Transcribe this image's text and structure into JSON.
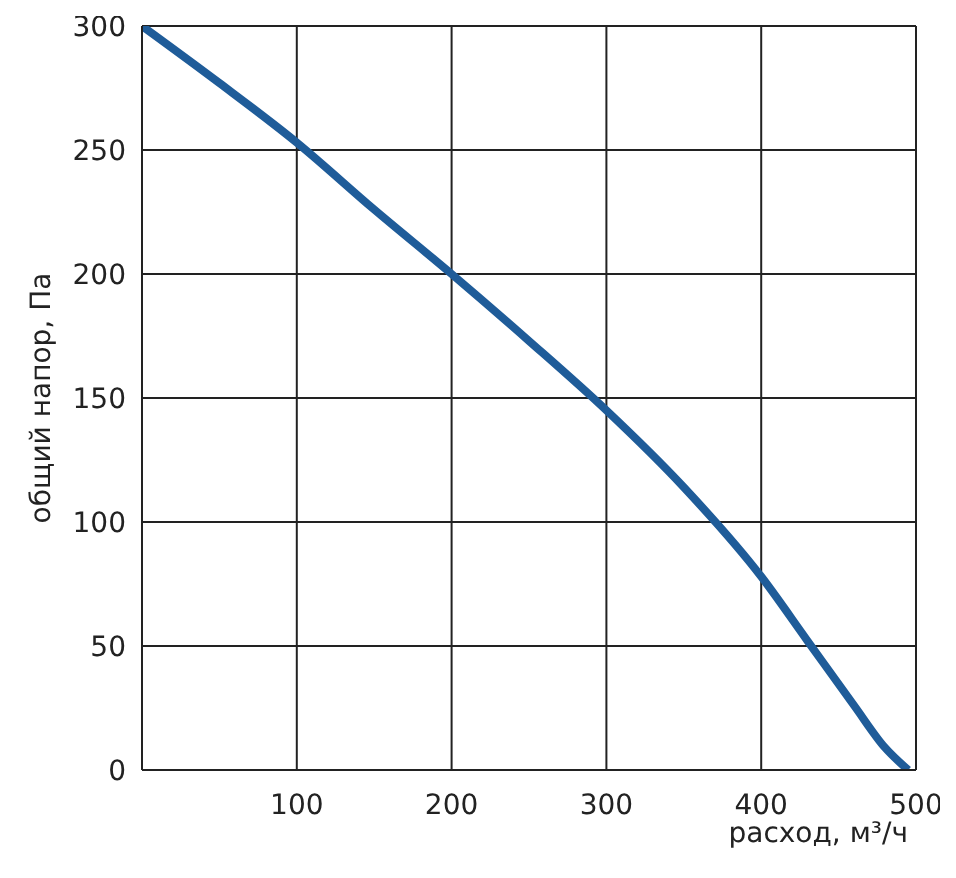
{
  "chart_data": {
    "type": "line",
    "xlabel": "расход, м³/ч",
    "ylabel": "общий напор, Па",
    "x": [
      0,
      50,
      100,
      150,
      200,
      250,
      300,
      350,
      400,
      430,
      460,
      480,
      495
    ],
    "series": [
      {
        "color": "#1f5c99",
        "values": [
          300,
          277,
          253,
          226,
          200,
          173,
          145,
          114,
          78,
          52,
          26,
          9,
          0
        ]
      }
    ],
    "xlim": [
      0,
      500
    ],
    "ylim": [
      0,
      300
    ],
    "xticks": [
      {
        "value": 0,
        "label": null
      },
      100,
      200,
      300,
      400,
      500
    ],
    "yticks": [
      0,
      50,
      100,
      150,
      200,
      250,
      300
    ],
    "grid": true,
    "marker": "none",
    "line_style": "solid"
  }
}
